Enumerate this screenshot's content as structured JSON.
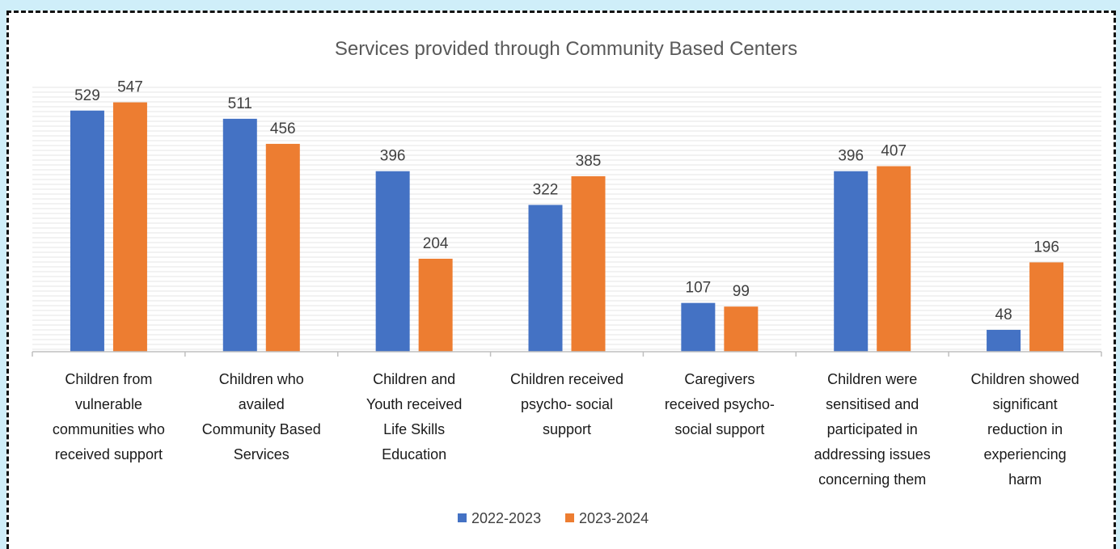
{
  "chart_data": {
    "type": "bar",
    "title": "Services provided through Community Based Centers",
    "categories": [
      [
        "Children from",
        "vulnerable",
        "communities who",
        "received support"
      ],
      [
        "Children who",
        "availed",
        "Community Based",
        "Services"
      ],
      [
        "Children and",
        "Youth received",
        "Life Skills",
        "Education"
      ],
      [
        "Children received",
        "psycho- social",
        "support"
      ],
      [
        "Caregivers",
        "received psycho-",
        "social support"
      ],
      [
        "Children were",
        "sensitised and",
        "participated in",
        "addressing issues",
        "concerning them"
      ],
      [
        "Children showed",
        "significant",
        "reduction in",
        "experiencing",
        "harm"
      ]
    ],
    "series": [
      {
        "name": "2022-2023",
        "values": [
          529,
          511,
          396,
          322,
          107,
          396,
          48
        ],
        "color": "#4472c4"
      },
      {
        "name": "2023-2024",
        "values": [
          547,
          456,
          204,
          385,
          99,
          407,
          196
        ],
        "color": "#ed7d31"
      }
    ],
    "ylim": [
      0,
      580
    ],
    "grid": true,
    "legend": "bottom",
    "data_labels": true
  },
  "colors": {
    "background": "#cfeef9",
    "gridline": "#e6e6e6",
    "axis": "#bfbfbf"
  }
}
